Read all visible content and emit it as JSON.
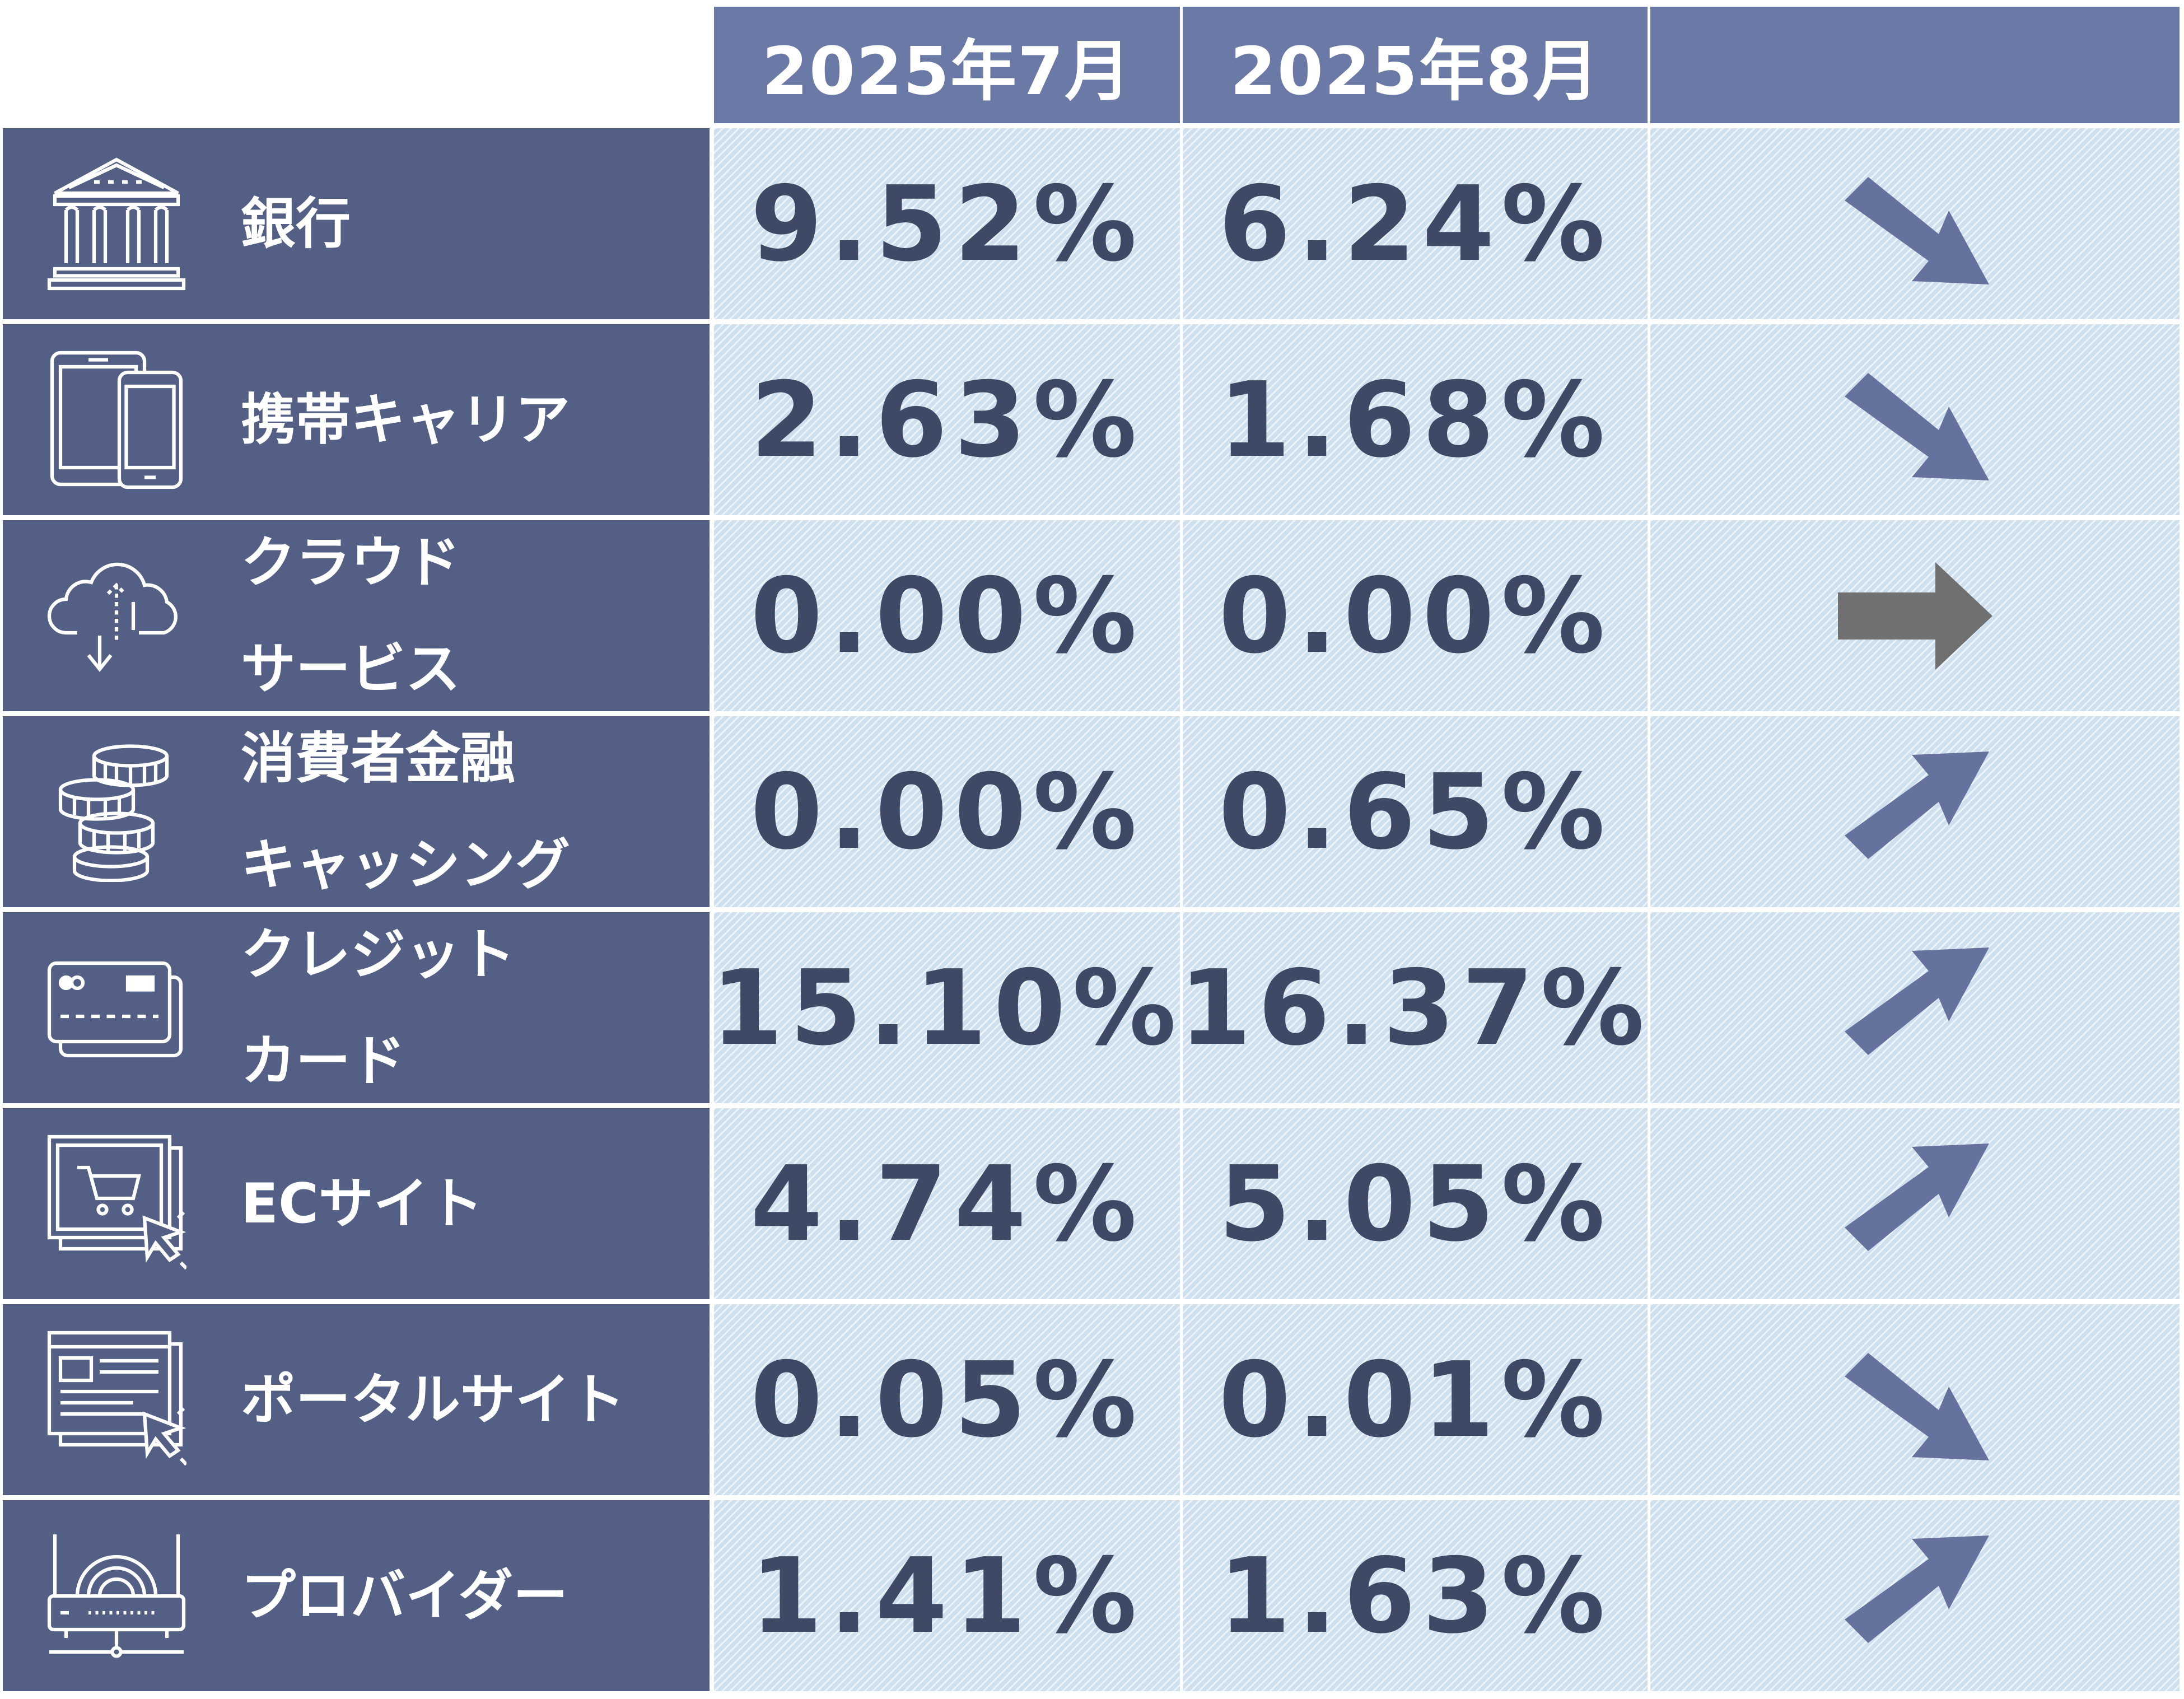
{
  "header": {
    "col1": "2025年7月",
    "col2": "2025年8月",
    "col3": ""
  },
  "colors": {
    "header_bg": "#6a79a6",
    "label_bg": "#535f84",
    "cell_bg": "#d6e6f3",
    "value_text": "#3e4965",
    "arrow_trend": "#65729e",
    "arrow_flat": "#707070"
  },
  "rows": [
    {
      "line1": "銀行",
      "line2": "",
      "icon": "bank-icon",
      "jul": "9.52%",
      "aug": "6.24%",
      "trend": "down"
    },
    {
      "line1": "携帯キャリア",
      "line2": "",
      "icon": "smartphone-tablet-icon",
      "jul": "2.63%",
      "aug": "1.68%",
      "trend": "down"
    },
    {
      "line1": "クラウド",
      "line2": "サービス",
      "icon": "cloud-transfer-icon",
      "jul": "0.00%",
      "aug": "0.00%",
      "trend": "flat"
    },
    {
      "line1": "消費者金融",
      "line2": "キャッシング",
      "icon": "coin-stack-icon",
      "jul": "0.00%",
      "aug": "0.65%",
      "trend": "up"
    },
    {
      "line1": "クレジット",
      "line2": "カード",
      "icon": "credit-card-icon",
      "jul": "15.10%",
      "aug": "16.37%",
      "trend": "up"
    },
    {
      "line1": "ECサイト",
      "line2": "",
      "icon": "shopping-cart-screen-icon",
      "jul": "4.74%",
      "aug": "5.05%",
      "trend": "up"
    },
    {
      "line1": "ポータルサイト",
      "line2": "",
      "icon": "web-portal-screen-icon",
      "jul": "0.05%",
      "aug": "0.01%",
      "trend": "down"
    },
    {
      "line1": "プロバイダー",
      "line2": "",
      "icon": "router-icon",
      "jul": "1.41%",
      "aug": "1.63%",
      "trend": "up"
    }
  ]
}
